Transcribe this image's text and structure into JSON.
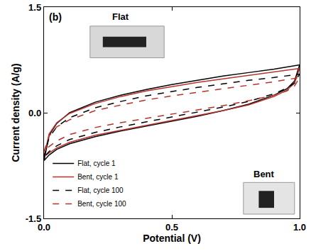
{
  "chart_data": {
    "type": "line",
    "panel_label": "(b)",
    "x_label": "Potential (V)",
    "y_label": "Current density (A/g)",
    "annotations": [
      "Flat",
      "Bent"
    ],
    "x": [
      0,
      0.02,
      0.05,
      0.1,
      0.2,
      0.3,
      0.4,
      0.5,
      0.6,
      0.7,
      0.8,
      0.9,
      1.0,
      0.98,
      0.95,
      0.9,
      0.8,
      0.7,
      0.6,
      0.5,
      0.4,
      0.3,
      0.2,
      0.1,
      0.05,
      0.02,
      0
    ],
    "series": [
      {
        "name": "Flat, cycle 1",
        "color": "#000000",
        "line_style": "solid",
        "values": [
          -0.68,
          -0.32,
          -0.15,
          0.0,
          0.15,
          0.25,
          0.33,
          0.4,
          0.46,
          0.52,
          0.57,
          0.62,
          0.68,
          0.45,
          0.34,
          0.25,
          0.12,
          0.03,
          -0.05,
          -0.12,
          -0.19,
          -0.26,
          -0.34,
          -0.44,
          -0.52,
          -0.6,
          -0.68
        ]
      },
      {
        "name": "Bent, cycle 1",
        "color": "#b5332e",
        "line_style": "solid",
        "values": [
          -0.62,
          -0.3,
          -0.14,
          -0.01,
          0.13,
          0.23,
          0.31,
          0.37,
          0.43,
          0.48,
          0.53,
          0.58,
          0.63,
          0.42,
          0.32,
          0.23,
          0.11,
          0.03,
          -0.04,
          -0.11,
          -0.18,
          -0.25,
          -0.32,
          -0.42,
          -0.5,
          -0.57,
          -0.62
        ]
      },
      {
        "name": "Flat, cycle 100",
        "color": "#000000",
        "line_style": "dashed",
        "values": [
          -0.63,
          -0.35,
          -0.2,
          -0.07,
          0.07,
          0.16,
          0.24,
          0.3,
          0.36,
          0.41,
          0.46,
          0.5,
          0.55,
          0.42,
          0.35,
          0.27,
          0.16,
          0.08,
          0.01,
          -0.06,
          -0.13,
          -0.2,
          -0.28,
          -0.38,
          -0.47,
          -0.55,
          -0.63
        ]
      },
      {
        "name": "Bent, cycle 100",
        "color": "#b5332e",
        "line_style": "dashed",
        "values": [
          -0.55,
          -0.33,
          -0.2,
          -0.1,
          0.03,
          0.11,
          0.18,
          0.24,
          0.29,
          0.34,
          0.39,
          0.44,
          0.5,
          0.38,
          0.31,
          0.25,
          0.17,
          0.1,
          0.04,
          -0.02,
          -0.08,
          -0.14,
          -0.21,
          -0.31,
          -0.4,
          -0.48,
          -0.55
        ]
      }
    ],
    "xlim": [
      0,
      1
    ],
    "xticks": [
      {
        "value": 0,
        "label": "0.0"
      },
      0.5,
      {
        "value": 1,
        "label": "1.0"
      }
    ],
    "ylim": [
      -1.5,
      1.5
    ],
    "yticks": [
      -1.5,
      {
        "value": 0,
        "label": "0.0"
      },
      1.5
    ],
    "legend": "lower left",
    "grid": false
  }
}
